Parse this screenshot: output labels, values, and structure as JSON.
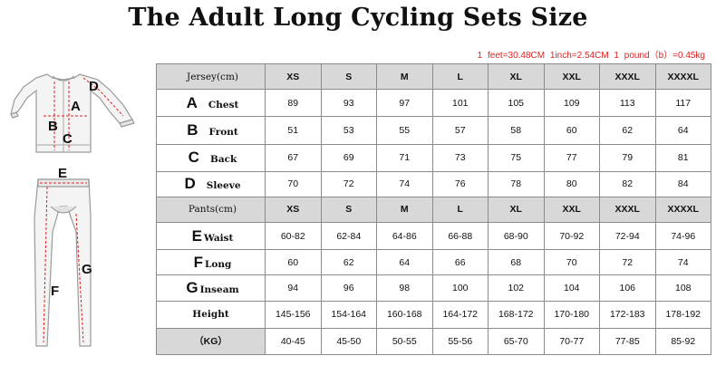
{
  "title": "The Adult Long Cycling Sets Size",
  "conversions": "1 feet=30.48CM    1inch=2.54CM    1 pound（b）=0.45kg",
  "colors": {
    "accent_red": "#e02020",
    "header_gray": "#d8d8d8",
    "border": "#8a8a8a"
  },
  "jersey_figure": {
    "labels": [
      "A",
      "B",
      "C",
      "D"
    ]
  },
  "pants_figure": {
    "labels": [
      "E",
      "F",
      "G"
    ]
  },
  "jersey": {
    "header": "Jersey(cm)",
    "sizes": [
      "XS",
      "S",
      "M",
      "L",
      "XL",
      "XXL",
      "XXXL",
      "XXXXL"
    ],
    "rows": [
      {
        "letter": "A",
        "name": "Chest",
        "values": [
          "89",
          "93",
          "97",
          "101",
          "105",
          "109",
          "113",
          "117"
        ]
      },
      {
        "letter": "B",
        "name": "Front",
        "values": [
          "51",
          "53",
          "55",
          "57",
          "58",
          "60",
          "62",
          "64"
        ]
      },
      {
        "letter": "C",
        "name": "Back",
        "values": [
          "67",
          "69",
          "71",
          "73",
          "75",
          "77",
          "79",
          "81"
        ]
      },
      {
        "letter": "D",
        "name": "Sleeve",
        "values": [
          "70",
          "72",
          "74",
          "76",
          "78",
          "80",
          "82",
          "84"
        ]
      }
    ]
  },
  "pants": {
    "header": "Pants(cm)",
    "sizes": [
      "XS",
      "S",
      "M",
      "L",
      "XL",
      "XXL",
      "XXXL",
      "XXXXL"
    ],
    "rows": [
      {
        "letter": "E",
        "name": "Waist",
        "values": [
          "60-82",
          "62-84",
          "64-86",
          "66-88",
          "68-90",
          "70-92",
          "72-94",
          "74-96"
        ]
      },
      {
        "letter": "F",
        "name": "Long",
        "values": [
          "60",
          "62",
          "64",
          "66",
          "68",
          "70",
          "72",
          "74"
        ]
      },
      {
        "letter": "G",
        "name": "Inseam",
        "values": [
          "94",
          "96",
          "98",
          "100",
          "102",
          "104",
          "106",
          "108"
        ]
      }
    ]
  },
  "height": {
    "label": "Height",
    "values": [
      "145-156",
      "154-164",
      "160-168",
      "164-172",
      "168-172",
      "170-180",
      "172-183",
      "178-192"
    ]
  },
  "weight": {
    "label": "（KG）",
    "values": [
      "40-45",
      "45-50",
      "50-55",
      "55-56",
      "65-70",
      "70-77",
      "77-85",
      "85-92"
    ]
  }
}
